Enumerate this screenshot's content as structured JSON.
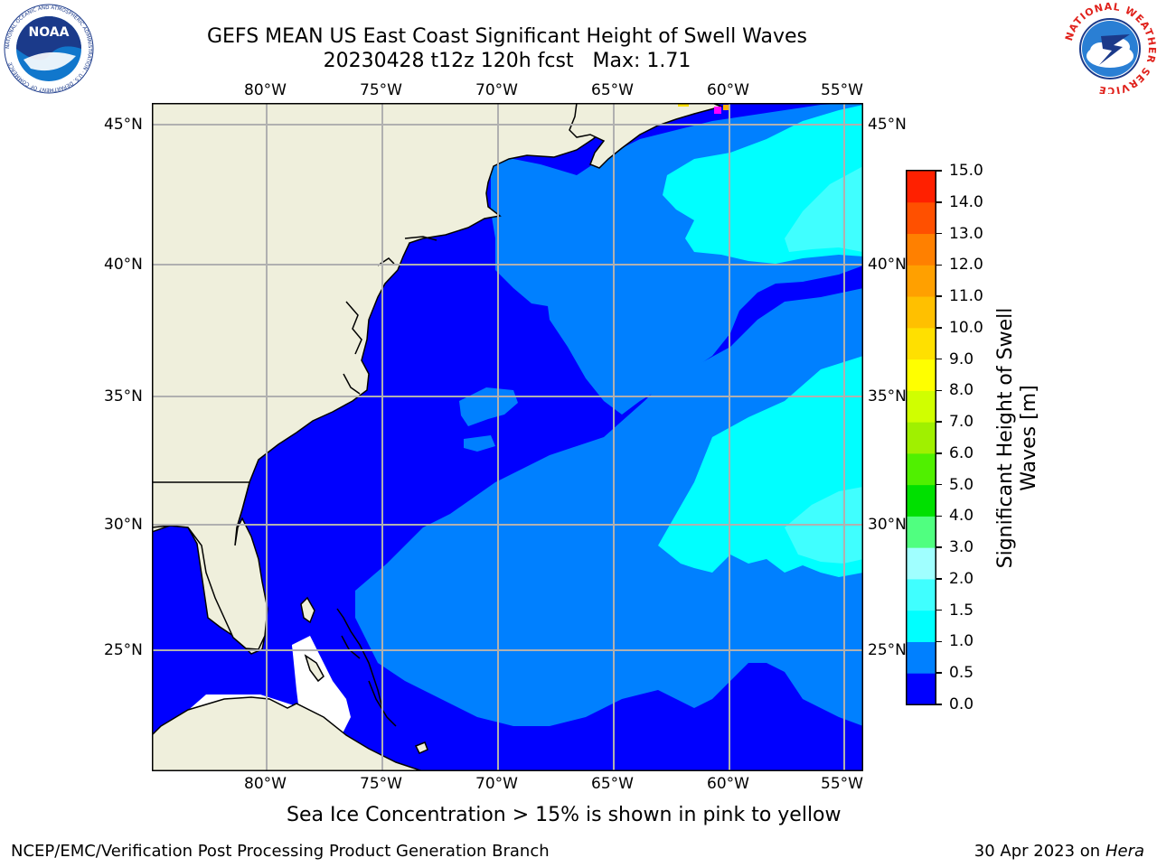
{
  "header": {
    "title_line1": "GEFS MEAN US East Coast Significant Height of Swell Waves",
    "title_line2": "20230428 t12z 120h fcst   Max: 1.71"
  },
  "logos": {
    "left": {
      "text": "NOAA",
      "ring_text": "NATIONAL OCEANIC AND ATMOSPHERIC ADMINISTRATION · U.S. DEPARTMENT OF COMMERCE"
    },
    "right": {
      "ring_text": "NATIONAL WEATHER SERVICE"
    }
  },
  "map": {
    "lon_labels": [
      "80°W",
      "75°W",
      "70°W",
      "65°W",
      "60°W",
      "55°W"
    ],
    "lat_labels": [
      "45°N",
      "40°N",
      "35°N",
      "30°N",
      "25°N"
    ],
    "colors": {
      "land": "#efefdc",
      "ocean_0_0_5": "#0000ff",
      "ocean_0_5_1_0": "#0080ff",
      "ocean_1_0_1_5": "#00ffff",
      "ocean_1_5_2_0": "#40ffff",
      "ice_missing": "#ffffff",
      "grid": "#b0b0b0"
    }
  },
  "colorbar": {
    "label": "Significant Height of Swell Waves [m]",
    "label_line1": "Significant Height of Swell",
    "label_line2": "Waves [m]",
    "ticks": [
      "0.0",
      "0.5",
      "1.0",
      "1.5",
      "2.0",
      "3.0",
      "4.0",
      "5.0",
      "6.0",
      "7.0",
      "8.0",
      "9.0",
      "10.0",
      "11.0",
      "12.0",
      "13.0",
      "14.0",
      "15.0"
    ],
    "colors": [
      "#0000ff",
      "#0080ff",
      "#00ffff",
      "#40ffff",
      "#a0ffff",
      "#50ff80",
      "#00e000",
      "#50f000",
      "#a0f000",
      "#d0ff00",
      "#ffff00",
      "#ffe000",
      "#ffc000",
      "#ffa000",
      "#ff8000",
      "#ff5000",
      "#ff2000",
      "#ff0000"
    ]
  },
  "notes": {
    "ice": "Sea Ice Concentration > 15% is shown in pink to yellow"
  },
  "footer": {
    "left": "NCEP/EMC/Verification Post Processing Product Generation Branch",
    "date": "30 Apr 2023 on ",
    "machine": "Hera"
  }
}
